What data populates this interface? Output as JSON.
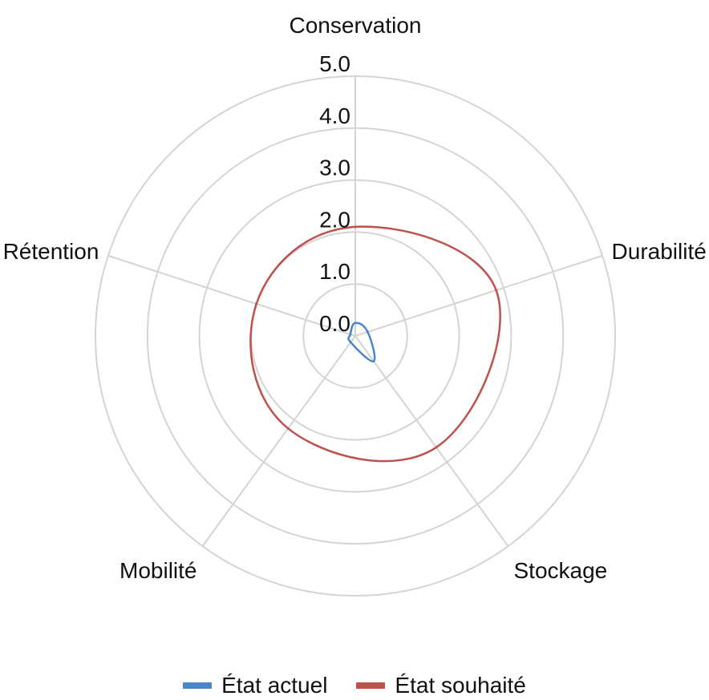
{
  "chart_data": {
    "type": "radar",
    "categories": [
      "Conservation",
      "Durabilité",
      "Stockage",
      "Mobilité",
      "Rétention"
    ],
    "radial_ticks": [
      "0.0",
      "1.0",
      "2.0",
      "3.0",
      "4.0",
      "5.0"
    ],
    "rmin": 0,
    "rmax": 5,
    "grid": true,
    "legend_position": "bottom",
    "series": [
      {
        "name": "État actuel",
        "color": "#4a86c8",
        "values": [
          0.25,
          0.25,
          0.6,
          0.15,
          0.1
        ]
      },
      {
        "name": "État souhaité",
        "color": "#c0504d",
        "values": [
          2.1,
          2.85,
          2.65,
          2.2,
          2.0
        ]
      }
    ]
  }
}
